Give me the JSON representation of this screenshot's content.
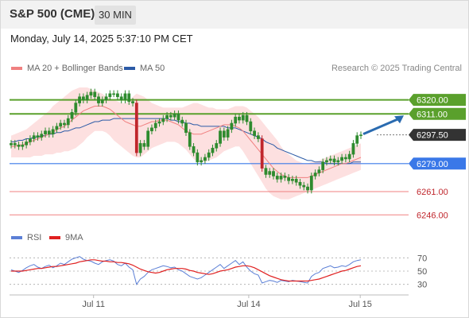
{
  "header": {
    "title": "S&P 500 (CME)",
    "timeframe": "30 MIN",
    "datetime": "Monday, July 14, 2025 5:37:10 PM CET"
  },
  "legend": {
    "ma20_label": "MA 20 + Bollinger Bands",
    "ma50_label": "MA 50",
    "credit": "Research © 2025 Trading Central",
    "rsi_label": "RSI",
    "rsi_ma_label": "9MA"
  },
  "colors": {
    "ma20": "#f08080",
    "ma50": "#2b5aa6",
    "bollinger_fill": "#fde0e0",
    "resistance": "#5aa02c",
    "support": "#3a78e8",
    "support_weak": "#f08080",
    "candle": "#2e8b2e",
    "candle_down": "#c0262c",
    "rsi": "#5b7fd6",
    "rsi_ma": "#e02020",
    "current_price_tag": "#333333",
    "arrow": "#2a6bb0"
  },
  "chart_data": [
    {
      "type": "candlestick",
      "title": "S&P 500 (CME)",
      "timeframe": "30 MIN",
      "x_ticks": [
        "Jul 11",
        "Jul 14",
        "Jul 15"
      ],
      "ylim": [
        6240,
        6327
      ],
      "levels": [
        {
          "value": 6320.0,
          "label": "6320.00",
          "kind": "resistance"
        },
        {
          "value": 6311.0,
          "label": "6311.00",
          "kind": "resistance"
        },
        {
          "value": 6297.5,
          "label": "6297.50",
          "kind": "current"
        },
        {
          "value": 6279.0,
          "label": "6279.00",
          "kind": "support"
        },
        {
          "value": 6261.0,
          "label": "6261.00",
          "kind": "support_weak"
        },
        {
          "value": 6246.0,
          "label": "6246.00",
          "kind": "support_weak"
        }
      ],
      "close": [
        6292,
        6291,
        6290,
        6291,
        6293,
        6295,
        6297,
        6296,
        6298,
        6300,
        6298,
        6301,
        6303,
        6305,
        6304,
        6308,
        6312,
        6318,
        6322,
        6320,
        6323,
        6325,
        6322,
        6318,
        6320,
        6322,
        6324,
        6324,
        6322,
        6320,
        6324,
        6319,
        6318,
        6286,
        6292,
        6290,
        6300,
        6302,
        6305,
        6306,
        6308,
        6310,
        6309,
        6311,
        6307,
        6305,
        6299,
        6290,
        6286,
        6280,
        6281,
        6283,
        6286,
        6289,
        6292,
        6300,
        6296,
        6301,
        6305,
        6309,
        6307,
        6310,
        6306,
        6300,
        6297,
        6295,
        6276,
        6272,
        6274,
        6271,
        6269,
        6271,
        6270,
        6268,
        6269,
        6267,
        6265,
        6264,
        6262,
        6271,
        6273,
        6275,
        6280,
        6281,
        6282,
        6280,
        6281,
        6283,
        6282,
        6285,
        6292,
        6297,
        6297.5
      ],
      "ma20": [
        6290,
        6290,
        6291,
        6291,
        6292,
        6293,
        6294,
        6295,
        6296,
        6297,
        6298,
        6299,
        6301,
        6302,
        6303,
        6305,
        6307,
        6309,
        6311,
        6313,
        6314,
        6315,
        6316,
        6316,
        6316,
        6315,
        6314,
        6312,
        6310,
        6308,
        6306,
        6305,
        6304,
        6303,
        6303,
        6304,
        6305,
        6306,
        6306,
        6307,
        6307,
        6307,
        6306,
        6305,
        6304,
        6302,
        6300,
        6299,
        6298,
        6298,
        6298,
        6299,
        6300,
        6301,
        6302,
        6303,
        6304,
        6304,
        6304,
        6303,
        6302,
        6300,
        6297,
        6294,
        6291,
        6288,
        6285,
        6282,
        6279,
        6276,
        6274,
        6272,
        6271,
        6270,
        6270,
        6270,
        6270,
        6270,
        6270,
        6271,
        6272,
        6273,
        6274,
        6275,
        6276,
        6277,
        6278,
        6279,
        6279,
        6280,
        6281,
        6282,
        6283
      ],
      "ma50": [
        6293,
        6293,
        6294,
        6294,
        6295,
        6295,
        6296,
        6296,
        6297,
        6297,
        6298,
        6298,
        6299,
        6299,
        6300,
        6300,
        6301,
        6302,
        6302,
        6303,
        6304,
        6305,
        6306,
        6306,
        6307,
        6307,
        6307,
        6308,
        6308,
        6308,
        6308,
        6308,
        6308,
        6308,
        6308,
        6308,
        6308,
        6308,
        6308,
        6308,
        6308,
        6308,
        6307,
        6307,
        6306,
        6306,
        6305,
        6305,
        6304,
        6304,
        6303,
        6303,
        6303,
        6303,
        6303,
        6303,
        6303,
        6302,
        6302,
        6302,
        6301,
        6300,
        6299,
        6298,
        6297,
        6296,
        6295,
        6293,
        6292,
        6291,
        6289,
        6288,
        6287,
        6286,
        6285,
        6284,
        6283,
        6282,
        6281,
        6281,
        6280,
        6280,
        6280,
        6279,
        6279,
        6279,
        6279,
        6279,
        6279,
        6279,
        6280,
        6280,
        6280
      ],
      "bb_upper": [
        6297,
        6298,
        6299,
        6300,
        6301,
        6303,
        6305,
        6307,
        6309,
        6311,
        6313,
        6316,
        6318,
        6320,
        6322,
        6324,
        6326,
        6327,
        6328,
        6328,
        6328,
        6327,
        6326,
        6325,
        6324,
        6322,
        6321,
        6320,
        6319,
        6318,
        6318,
        6319,
        6322,
        6324,
        6323,
        6322,
        6320,
        6318,
        6317,
        6316,
        6315,
        6315,
        6315,
        6315,
        6315,
        6315,
        6316,
        6317,
        6318,
        6318,
        6317,
        6316,
        6315,
        6315,
        6314,
        6314,
        6314,
        6314,
        6315,
        6316,
        6316,
        6316,
        6315,
        6313,
        6311,
        6309,
        6306,
        6303,
        6300,
        6297,
        6294,
        6290,
        6287,
        6285,
        6283,
        6281,
        6280,
        6279,
        6279,
        6280,
        6280,
        6281,
        6282,
        6283,
        6284,
        6285,
        6286,
        6287,
        6288,
        6289,
        6290,
        6291,
        6292
      ],
      "bb_lower": [
        6283,
        6283,
        6283,
        6283,
        6283,
        6283,
        6284,
        6284,
        6284,
        6285,
        6285,
        6285,
        6286,
        6286,
        6287,
        6287,
        6288,
        6289,
        6291,
        6293,
        6296,
        6298,
        6300,
        6300,
        6300,
        6299,
        6297,
        6294,
        6292,
        6290,
        6288,
        6286,
        6284,
        6283,
        6283,
        6285,
        6287,
        6289,
        6290,
        6291,
        6292,
        6293,
        6293,
        6293,
        6292,
        6290,
        6288,
        6285,
        6282,
        6280,
        6280,
        6280,
        6281,
        6282,
        6283,
        6285,
        6287,
        6288,
        6289,
        6290,
        6290,
        6287,
        6283,
        6279,
        6275,
        6271,
        6267,
        6263,
        6260,
        6258,
        6257,
        6256,
        6256,
        6256,
        6257,
        6258,
        6259,
        6260,
        6261,
        6262,
        6263,
        6264,
        6265,
        6266,
        6267,
        6268,
        6269,
        6270,
        6271,
        6272,
        6273,
        6274,
        6275
      ]
    },
    {
      "type": "line",
      "title": "RSI",
      "series": [
        {
          "name": "RSI",
          "values": [
            52,
            50,
            48,
            51,
            55,
            58,
            60,
            56,
            54,
            57,
            59,
            55,
            58,
            62,
            60,
            64,
            68,
            70,
            72,
            68,
            66,
            65,
            62,
            60,
            64,
            66,
            67,
            65,
            60,
            58,
            62,
            56,
            52,
            30,
            38,
            42,
            48,
            52,
            54,
            56,
            58,
            57,
            55,
            56,
            52,
            50,
            46,
            42,
            40,
            38,
            40,
            44,
            48,
            52,
            56,
            60,
            54,
            58,
            62,
            66,
            60,
            64,
            56,
            50,
            46,
            44,
            32,
            34,
            36,
            35,
            33,
            36,
            35,
            34,
            36,
            35,
            34,
            33,
            32,
            42,
            46,
            48,
            54,
            56,
            58,
            55,
            56,
            58,
            57,
            60,
            64,
            66,
            67
          ]
        },
        {
          "name": "9MA",
          "values": [
            50,
            50,
            50,
            50,
            51,
            52,
            53,
            54,
            54,
            55,
            56,
            57,
            57,
            58,
            59,
            60,
            61,
            62,
            64,
            65,
            66,
            67,
            67,
            66,
            65,
            65,
            64,
            64,
            63,
            63,
            62,
            61,
            59,
            56,
            53,
            51,
            49,
            48,
            47,
            48,
            50,
            52,
            53,
            54,
            54,
            54,
            53,
            51,
            50,
            48,
            47,
            46,
            45,
            46,
            48,
            50,
            51,
            52,
            54,
            56,
            57,
            58,
            58,
            57,
            55,
            52,
            49,
            46,
            43,
            41,
            39,
            37,
            36,
            35,
            35,
            35,
            35,
            35,
            35,
            36,
            37,
            38,
            40,
            42,
            44,
            46,
            48,
            50,
            51,
            53,
            55,
            57,
            58
          ]
        }
      ],
      "y_ticks": [
        70,
        50,
        30
      ],
      "ylim": [
        20,
        80
      ]
    }
  ]
}
